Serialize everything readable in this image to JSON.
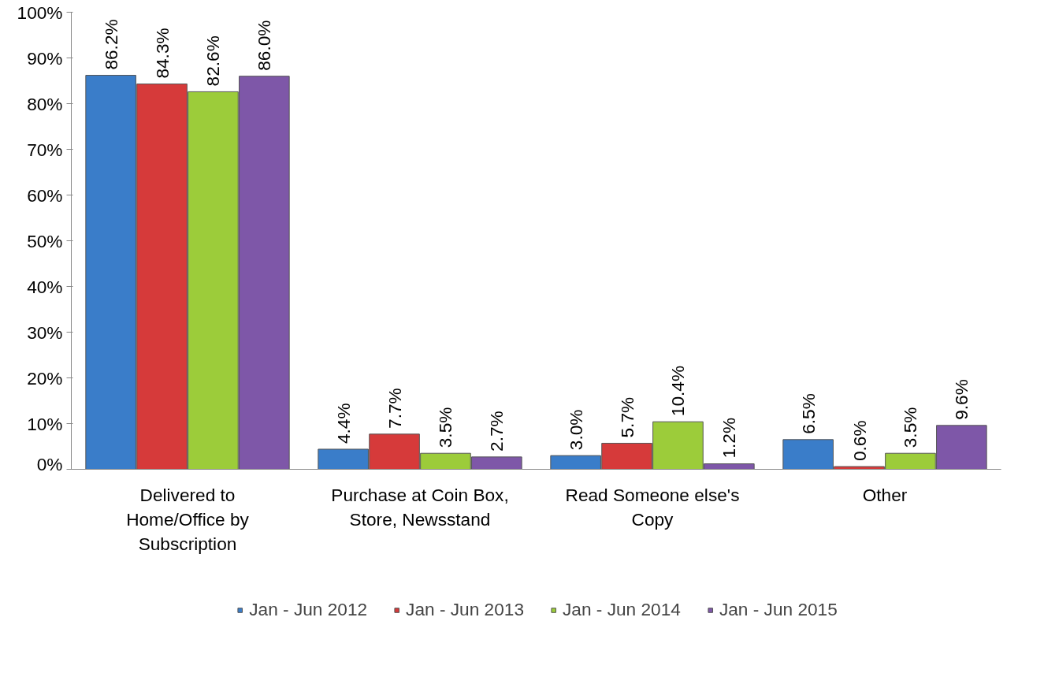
{
  "chart_data": {
    "type": "bar",
    "categories": [
      "Delivered to Home/Office by Subscription",
      "Purchase at Coin Box, Store, Newsstand",
      "Read Someone else's Copy",
      "Other"
    ],
    "series": [
      {
        "name": "Jan - Jun 2012",
        "color": "#3a7dc9",
        "values": [
          86.2,
          4.4,
          3.0,
          6.5
        ],
        "value_labels": [
          "86.2%",
          "4.4%",
          "3.0%",
          "6.5%"
        ]
      },
      {
        "name": "Jan - Jun 2013",
        "color": "#d63a3a",
        "values": [
          84.3,
          7.7,
          5.7,
          0.6
        ],
        "value_labels": [
          "84.3%",
          "7.7%",
          "5.7%",
          "0.6%"
        ]
      },
      {
        "name": "Jan - Jun 2014",
        "color": "#9ccc3a",
        "values": [
          82.6,
          3.5,
          10.4,
          3.5
        ],
        "value_labels": [
          "82.6%",
          "3.5%",
          "10.4%",
          "3.5%"
        ]
      },
      {
        "name": "Jan - Jun 2015",
        "color": "#7e57a8",
        "values": [
          86.0,
          2.7,
          1.2,
          9.6
        ],
        "value_labels": [
          "86.0%",
          "2.7%",
          "1.2%",
          "9.6%"
        ]
      }
    ],
    "ylim": [
      0,
      100
    ],
    "yticks": [
      {
        "value": 0,
        "label": "0%"
      },
      {
        "value": 10,
        "label": "10%"
      },
      {
        "value": 20,
        "label": "20%"
      },
      {
        "value": 30,
        "label": "30%"
      },
      {
        "value": 40,
        "label": "40%"
      },
      {
        "value": 50,
        "label": "50%"
      },
      {
        "value": 60,
        "label": "60%"
      },
      {
        "value": 70,
        "label": "70%"
      },
      {
        "value": 80,
        "label": "80%"
      },
      {
        "value": 90,
        "label": "90%"
      },
      {
        "value": 100,
        "label": "100%"
      }
    ],
    "grid": false,
    "legend": "bottom"
  }
}
